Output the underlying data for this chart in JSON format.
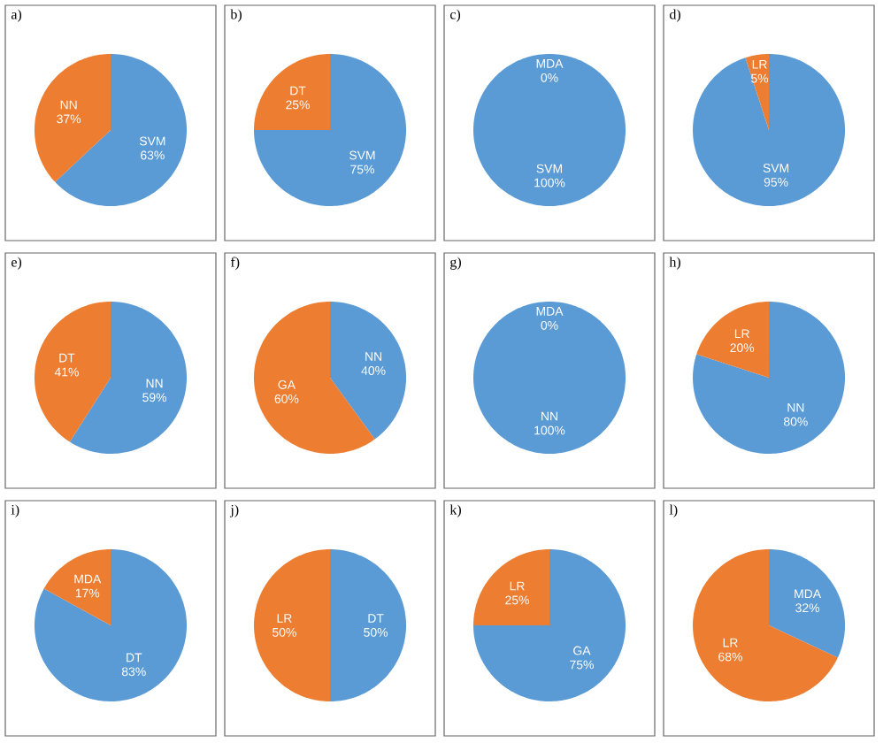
{
  "chart_data": [
    {
      "type": "pie",
      "title": "a)",
      "categories": [
        "SVM",
        "NN"
      ],
      "values": [
        63,
        37
      ],
      "value_labels": [
        "63%",
        "37%"
      ],
      "colors": [
        "#5b9bd5",
        "#ed7d31"
      ]
    },
    {
      "type": "pie",
      "title": "b)",
      "categories": [
        "SVM",
        "DT"
      ],
      "values": [
        75,
        25
      ],
      "value_labels": [
        "75%",
        "25%"
      ],
      "colors": [
        "#5b9bd5",
        "#ed7d31"
      ]
    },
    {
      "type": "pie",
      "title": "c)",
      "categories": [
        "SVM",
        "MDA"
      ],
      "values": [
        100,
        0
      ],
      "value_labels": [
        "100%",
        "0%"
      ],
      "colors": [
        "#5b9bd5",
        "#ed7d31"
      ]
    },
    {
      "type": "pie",
      "title": "d)",
      "categories": [
        "SVM",
        "LR"
      ],
      "values": [
        95,
        5
      ],
      "value_labels": [
        "95%",
        "5%"
      ],
      "colors": [
        "#5b9bd5",
        "#ed7d31"
      ]
    },
    {
      "type": "pie",
      "title": "e)",
      "categories": [
        "NN",
        "DT"
      ],
      "values": [
        59,
        41
      ],
      "value_labels": [
        "59%",
        "41%"
      ],
      "colors": [
        "#5b9bd5",
        "#ed7d31"
      ]
    },
    {
      "type": "pie",
      "title": "f)",
      "categories": [
        "NN",
        "GA"
      ],
      "values": [
        40,
        60
      ],
      "value_labels": [
        "40%",
        "60%"
      ],
      "colors": [
        "#5b9bd5",
        "#ed7d31"
      ]
    },
    {
      "type": "pie",
      "title": "g)",
      "categories": [
        "NN",
        "MDA"
      ],
      "values": [
        100,
        0
      ],
      "value_labels": [
        "100%",
        "0%"
      ],
      "colors": [
        "#5b9bd5",
        "#ed7d31"
      ]
    },
    {
      "type": "pie",
      "title": "h)",
      "categories": [
        "NN",
        "LR"
      ],
      "values": [
        80,
        20
      ],
      "value_labels": [
        "80%",
        "20%"
      ],
      "colors": [
        "#5b9bd5",
        "#ed7d31"
      ]
    },
    {
      "type": "pie",
      "title": "i)",
      "categories": [
        "DT",
        "MDA"
      ],
      "values": [
        83,
        17
      ],
      "value_labels": [
        "83%",
        "17%"
      ],
      "colors": [
        "#5b9bd5",
        "#ed7d31"
      ]
    },
    {
      "type": "pie",
      "title": "j)",
      "categories": [
        "DT",
        "LR"
      ],
      "values": [
        50,
        50
      ],
      "value_labels": [
        "50%",
        "50%"
      ],
      "colors": [
        "#5b9bd5",
        "#ed7d31"
      ]
    },
    {
      "type": "pie",
      "title": "k)",
      "categories": [
        "GA",
        "LR"
      ],
      "values": [
        75,
        25
      ],
      "value_labels": [
        "75%",
        "25%"
      ],
      "colors": [
        "#5b9bd5",
        "#ed7d31"
      ]
    },
    {
      "type": "pie",
      "title": "l)",
      "categories": [
        "MDA",
        "LR"
      ],
      "values": [
        32,
        68
      ],
      "value_labels": [
        "32%",
        "68%"
      ],
      "colors": [
        "#5b9bd5",
        "#ed7d31"
      ]
    }
  ]
}
